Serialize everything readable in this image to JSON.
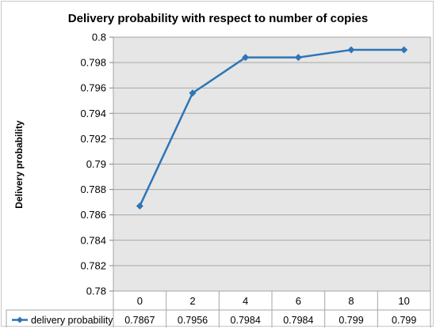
{
  "chart_data": {
    "type": "line",
    "title": "Delivery probability with respect to number of copies",
    "xlabel": "",
    "ylabel": "Delivery probability",
    "categories": [
      "0",
      "2",
      "4",
      "6",
      "8",
      "10"
    ],
    "series": [
      {
        "name": "delivery probability",
        "values": [
          0.7867,
          0.7956,
          0.7984,
          0.7984,
          0.799,
          0.799
        ],
        "value_labels": [
          "0.7867",
          "0.7956",
          "0.7984",
          "0.7984",
          "0.799",
          "0.799"
        ],
        "color": "#2e75b6"
      }
    ],
    "ylim": [
      0.78,
      0.8
    ],
    "yticks": [
      "0.78",
      "0.782",
      "0.784",
      "0.786",
      "0.788",
      "0.79",
      "0.792",
      "0.794",
      "0.796",
      "0.798",
      "0.8"
    ],
    "grid": true,
    "plot_background": "#e6e6e6",
    "legend": "data-table"
  }
}
